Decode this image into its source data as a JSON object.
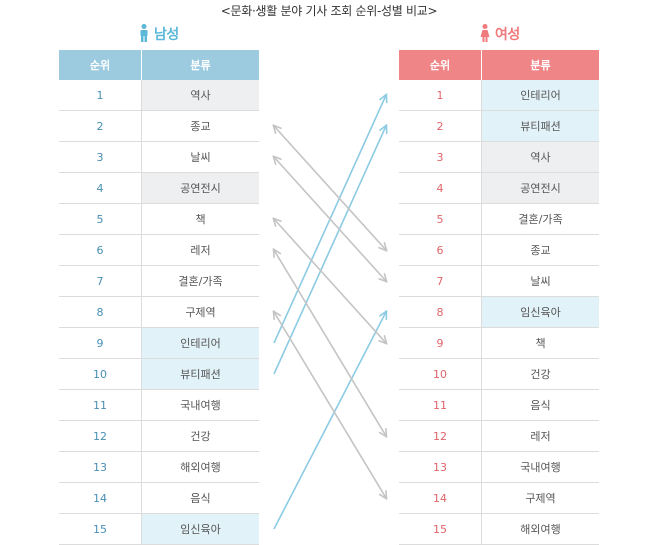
{
  "title": "<문화·생활 분야 기사 조회 순위-성별 비교>",
  "male_label": "남성",
  "female_label": "여성",
  "headers": {
    "rank": "순위",
    "category": "분류"
  },
  "colors": {
    "male": "#5bb8d9",
    "female": "#f07a7c",
    "arrow_blue": "#8ccbe3",
    "arrow_grey": "#c4c4c4",
    "highlight_grey": "#eeeff1",
    "highlight_blue": "#e2f2f9"
  },
  "chart_data": {
    "type": "table",
    "title": "<문화·생활 분야 기사 조회 순위-성별 비교>",
    "male": {
      "label": "남성",
      "rows": [
        {
          "rank": "1",
          "category": "역사",
          "highlight": "grey"
        },
        {
          "rank": "2",
          "category": "종교",
          "highlight": ""
        },
        {
          "rank": "3",
          "category": "날씨",
          "highlight": ""
        },
        {
          "rank": "4",
          "category": "공연전시",
          "highlight": "grey"
        },
        {
          "rank": "5",
          "category": "책",
          "highlight": ""
        },
        {
          "rank": "6",
          "category": "레저",
          "highlight": ""
        },
        {
          "rank": "7",
          "category": "결혼/가족",
          "highlight": ""
        },
        {
          "rank": "8",
          "category": "구제역",
          "highlight": ""
        },
        {
          "rank": "9",
          "category": "인테리어",
          "highlight": "blue"
        },
        {
          "rank": "10",
          "category": "뷰티패션",
          "highlight": "blue"
        },
        {
          "rank": "11",
          "category": "국내여행",
          "highlight": ""
        },
        {
          "rank": "12",
          "category": "건강",
          "highlight": ""
        },
        {
          "rank": "13",
          "category": "해외여행",
          "highlight": ""
        },
        {
          "rank": "14",
          "category": "음식",
          "highlight": ""
        },
        {
          "rank": "15",
          "category": "임신육아",
          "highlight": "blue"
        }
      ]
    },
    "female": {
      "label": "여성",
      "rows": [
        {
          "rank": "1",
          "category": "인테리어",
          "highlight": "blue"
        },
        {
          "rank": "2",
          "category": "뷰티패션",
          "highlight": "blue"
        },
        {
          "rank": "3",
          "category": "역사",
          "highlight": "grey"
        },
        {
          "rank": "4",
          "category": "공연전시",
          "highlight": "grey"
        },
        {
          "rank": "5",
          "category": "결혼/가족",
          "highlight": ""
        },
        {
          "rank": "6",
          "category": "종교",
          "highlight": ""
        },
        {
          "rank": "7",
          "category": "날씨",
          "highlight": ""
        },
        {
          "rank": "8",
          "category": "임신육아",
          "highlight": "blue"
        },
        {
          "rank": "9",
          "category": "책",
          "highlight": ""
        },
        {
          "rank": "10",
          "category": "건강",
          "highlight": ""
        },
        {
          "rank": "11",
          "category": "음식",
          "highlight": ""
        },
        {
          "rank": "12",
          "category": "레저",
          "highlight": ""
        },
        {
          "rank": "13",
          "category": "국내여행",
          "highlight": ""
        },
        {
          "rank": "14",
          "category": "구제역",
          "highlight": ""
        },
        {
          "rank": "15",
          "category": "해외여행",
          "highlight": ""
        }
      ]
    },
    "links": [
      {
        "male_rank": 9,
        "female_rank": 1,
        "direction": "to-female",
        "color": "blue"
      },
      {
        "male_rank": 10,
        "female_rank": 2,
        "direction": "to-female",
        "color": "blue"
      },
      {
        "male_rank": 15,
        "female_rank": 8,
        "direction": "to-female",
        "color": "blue"
      },
      {
        "male_rank": 2,
        "female_rank": 6,
        "direction": "both",
        "color": "grey"
      },
      {
        "male_rank": 3,
        "female_rank": 7,
        "direction": "both",
        "color": "grey"
      },
      {
        "male_rank": 5,
        "female_rank": 9,
        "direction": "both",
        "color": "grey"
      },
      {
        "male_rank": 6,
        "female_rank": 12,
        "direction": "both",
        "color": "grey"
      },
      {
        "male_rank": 8,
        "female_rank": 14,
        "direction": "both",
        "color": "grey"
      }
    ]
  }
}
